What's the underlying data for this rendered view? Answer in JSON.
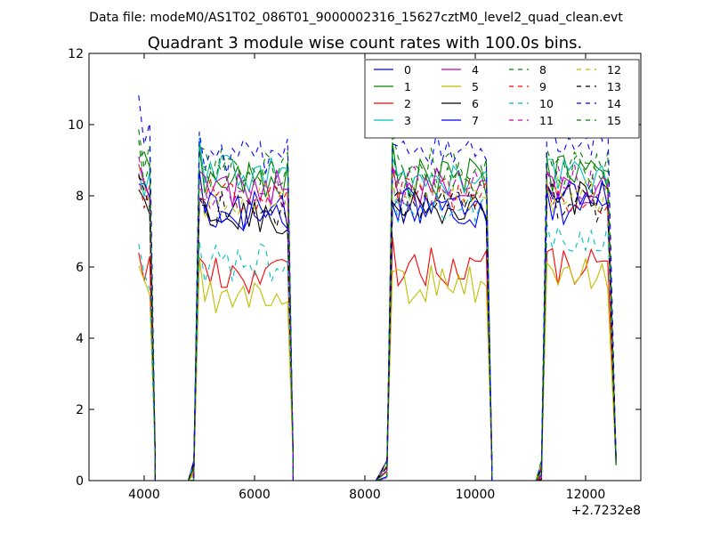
{
  "header": {
    "suptitle": "Data file: modeM0/AS1T02_086T01_9000002316_15627cztM0_level2_quad_clean.evt"
  },
  "chart_data": {
    "type": "line",
    "title": "Quadrant 3 module wise count rates with 100.0s bins.",
    "xlabel": "",
    "ylabel": "",
    "offset_label": "+2.7232e8",
    "xlim": [
      3000,
      13000
    ],
    "ylim": [
      0,
      12
    ],
    "xticks": [
      "4000",
      "6000",
      "8000",
      "10000",
      "12000"
    ],
    "xtick_values": [
      4000,
      6000,
      8000,
      10000,
      12000
    ],
    "yticks": [
      "0",
      "2",
      "4",
      "6",
      "8",
      "10",
      "12"
    ],
    "ytick_values": [
      0,
      2,
      4,
      6,
      8,
      10,
      12
    ],
    "grid": false,
    "legend": {
      "placement": "top-right",
      "columns": 4
    },
    "segments": [
      {
        "start": 3900,
        "end": 4100
      },
      {
        "start": 5000,
        "end": 6600
      },
      {
        "start": 8500,
        "end": 10200
      },
      {
        "start": 11300,
        "end": 12450
      }
    ],
    "gap_x": [
      4200,
      4300,
      4400,
      4500,
      4600,
      4700,
      4800,
      6700,
      6800,
      6900,
      7000,
      7100,
      7200,
      7300,
      7400,
      7500,
      7600,
      7700,
      7800,
      7900,
      8000,
      8100,
      8200,
      10300,
      10400,
      10500,
      10600,
      10700,
      10800,
      10900,
      11000,
      11100
    ],
    "series": [
      {
        "name": "0",
        "color": "#0000ff",
        "dash": "solid",
        "levels": [
          8.0,
          7.5,
          7.6,
          7.7
        ]
      },
      {
        "name": "1",
        "color": "#008000",
        "dash": "solid",
        "levels": [
          8.7,
          8.4,
          8.5,
          8.6
        ]
      },
      {
        "name": "2",
        "color": "#ff0000",
        "dash": "solid",
        "levels": [
          6.0,
          5.8,
          6.0,
          6.0
        ]
      },
      {
        "name": "3",
        "color": "#00bfbf",
        "dash": "solid",
        "levels": [
          8.2,
          8.6,
          8.4,
          8.6
        ]
      },
      {
        "name": "4",
        "color": "#bf00bf",
        "dash": "solid",
        "levels": [
          8.4,
          8.2,
          8.3,
          8.2
        ]
      },
      {
        "name": "5",
        "color": "#bfbf00",
        "dash": "solid",
        "levels": [
          5.5,
          5.2,
          5.5,
          5.7
        ]
      },
      {
        "name": "6",
        "color": "#000000",
        "dash": "solid",
        "levels": [
          7.6,
          7.4,
          7.6,
          7.9
        ]
      },
      {
        "name": "7",
        "color": "#0000ff",
        "dash": "solid",
        "levels": [
          7.9,
          7.6,
          7.7,
          7.9
        ]
      },
      {
        "name": "8",
        "color": "#008000",
        "dash": "dashed",
        "levels": [
          9.2,
          8.8,
          8.8,
          8.9
        ]
      },
      {
        "name": "9",
        "color": "#ff0000",
        "dash": "dashed",
        "levels": [
          7.9,
          7.9,
          8.0,
          7.9
        ]
      },
      {
        "name": "10",
        "color": "#00bfbf",
        "dash": "dashed",
        "levels": [
          5.9,
          6.1,
          7.8,
          6.8
        ]
      },
      {
        "name": "11",
        "color": "#bf00bf",
        "dash": "dashed",
        "levels": [
          8.3,
          8.1,
          8.3,
          8.4
        ]
      },
      {
        "name": "12",
        "color": "#bfbf00",
        "dash": "dashed",
        "levels": [
          8.0,
          7.8,
          8.0,
          8.0
        ]
      },
      {
        "name": "13",
        "color": "#000000",
        "dash": "dashed",
        "levels": [
          7.7,
          7.6,
          7.7,
          7.8
        ]
      },
      {
        "name": "14",
        "color": "#0000ff",
        "dash": "dashed",
        "levels": [
          9.9,
          9.1,
          9.4,
          9.6
        ]
      },
      {
        "name": "15",
        "color": "#008000",
        "dash": "dashed",
        "levels": [
          8.6,
          8.6,
          8.5,
          8.7
        ]
      }
    ]
  }
}
